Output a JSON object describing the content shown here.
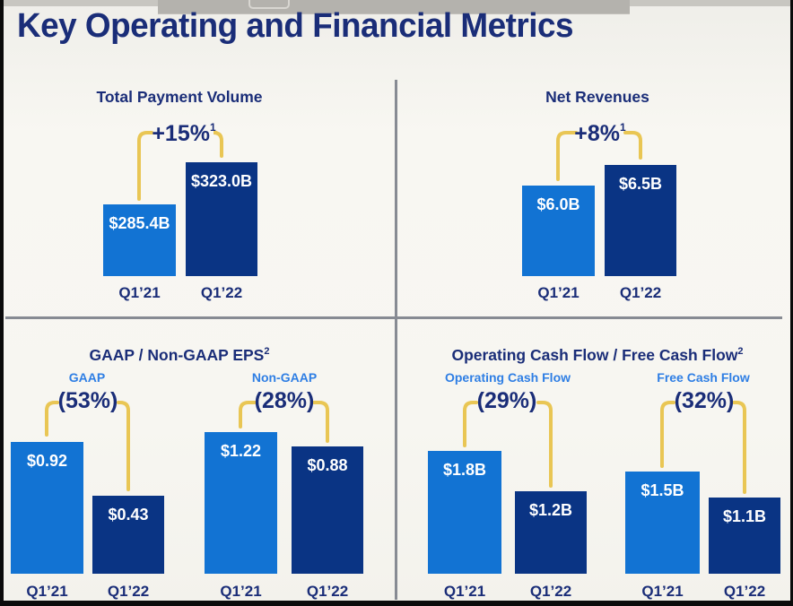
{
  "page": {
    "title": "Key Operating and Financial Metrics"
  },
  "colors": {
    "navy_text": "#1a2d78",
    "bar_light_blue": "#1273d3",
    "bar_dark_navy": "#0a3484",
    "sublabel_blue": "#2e7ee4",
    "accent_yellow": "#e9c654",
    "divider_gray": "#878b93",
    "value_label_white": "#ffffff",
    "background_offwhite": "#f7f6f1"
  },
  "chart_data": [
    {
      "type": "bar",
      "title": "Total Payment Volume",
      "title_footnote": "",
      "ylabel": "",
      "groups": [
        {
          "label": "",
          "change_label": "+15%",
          "change_footnote": "1",
          "categories": [
            "Q1’21",
            "Q1’22"
          ],
          "values": [
            285.4,
            323.0
          ],
          "value_labels": [
            "$285.4B",
            "$323.0B"
          ]
        }
      ]
    },
    {
      "type": "bar",
      "title": "Net Revenues",
      "title_footnote": "",
      "ylabel": "",
      "groups": [
        {
          "label": "",
          "change_label": "+8%",
          "change_footnote": "1",
          "categories": [
            "Q1’21",
            "Q1’22"
          ],
          "values": [
            6.0,
            6.5
          ],
          "value_labels": [
            "$6.0B",
            "$6.5B"
          ]
        }
      ]
    },
    {
      "type": "bar",
      "title": "GAAP / Non-GAAP EPS",
      "title_footnote": "2",
      "ylabel": "",
      "groups": [
        {
          "label": "GAAP",
          "change_label": "(53%)",
          "change_footnote": "",
          "categories": [
            "Q1’21",
            "Q1’22"
          ],
          "values": [
            0.92,
            0.43
          ],
          "value_labels": [
            "$0.92",
            "$0.43"
          ]
        },
        {
          "label": "Non-GAAP",
          "change_label": "(28%)",
          "change_footnote": "",
          "categories": [
            "Q1’21",
            "Q1’22"
          ],
          "values": [
            1.22,
            0.88
          ],
          "value_labels": [
            "$1.22",
            "$0.88"
          ]
        }
      ]
    },
    {
      "type": "bar",
      "title": "Operating Cash Flow / Free Cash Flow",
      "title_footnote": "2",
      "ylabel": "",
      "groups": [
        {
          "label": "Operating Cash Flow",
          "change_label": "(29%)",
          "change_footnote": "",
          "categories": [
            "Q1’21",
            "Q1’22"
          ],
          "values": [
            1.8,
            1.2
          ],
          "value_labels": [
            "$1.8B",
            "$1.2B"
          ]
        },
        {
          "label": "Free Cash Flow",
          "change_label": "(32%)",
          "change_footnote": "",
          "categories": [
            "Q1’21",
            "Q1’22"
          ],
          "values": [
            1.5,
            1.1
          ],
          "value_labels": [
            "$1.5B",
            "$1.1B"
          ]
        }
      ]
    }
  ]
}
